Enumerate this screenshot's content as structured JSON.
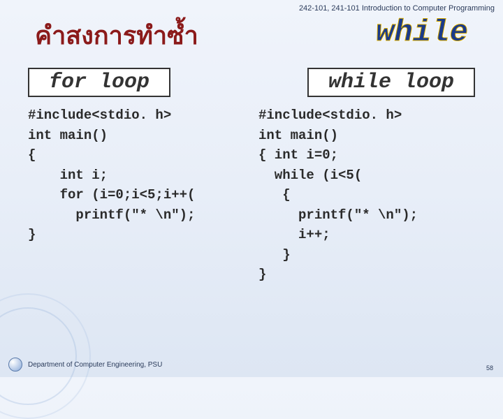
{
  "course_header": "242-101, 241-101 Introduction to Computer Programming",
  "title_left": "คำสงการทำซ้ำ",
  "title_right": "while",
  "box_left": "for loop",
  "box_right": "while loop",
  "code_left": "#include<stdio. h>\nint main()\n{\n    int i;\n    for (i=0;i<5;i++(\n      printf(\"* \\n\");\n}",
  "code_right": "#include<stdio. h>\nint main()\n{ int i=0;\n  while (i<5(\n   {\n     printf(\"* \\n\");\n     i++;\n   }\n}",
  "footer_text": "Department of Computer Engineering, PSU",
  "page_number": "58"
}
